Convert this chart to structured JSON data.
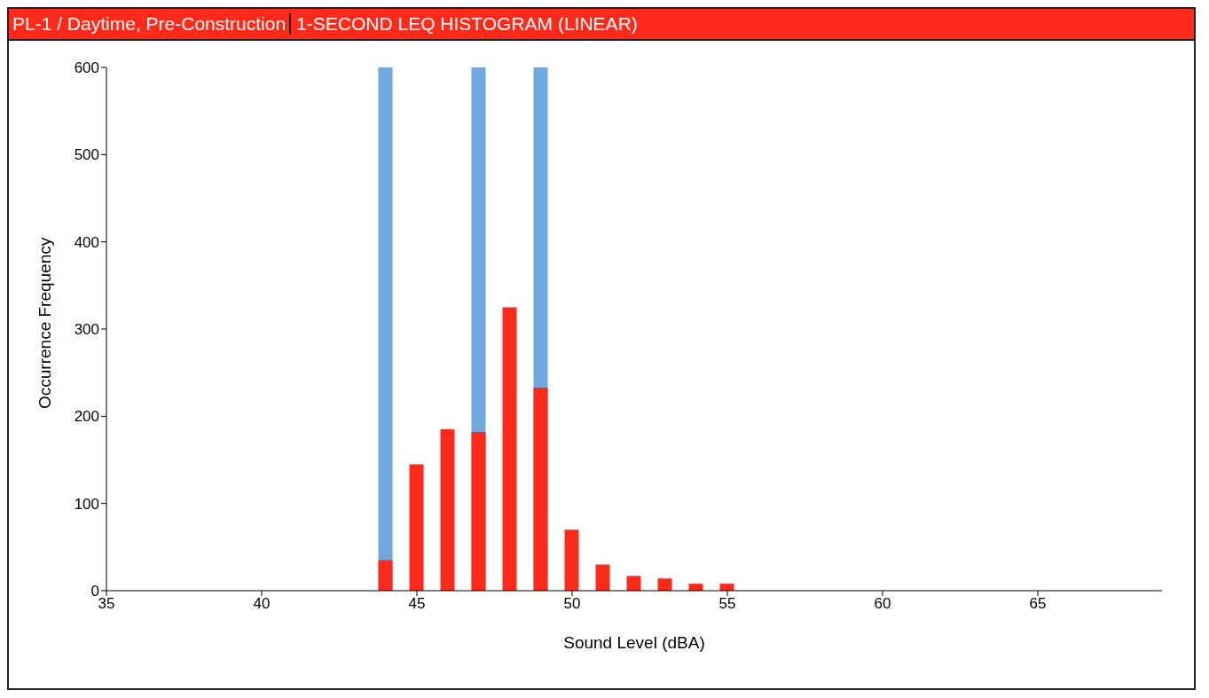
{
  "chart_data": {
    "type": "bar",
    "title": "PL-1 / Daytime, Pre-Construction",
    "subtitle": "1-SECOND LEQ HISTOGRAM (LINEAR)",
    "xlabel": "Sound Level (dBA)",
    "ylabel": "Occurrence Frequency",
    "x": [
      44,
      45,
      46,
      47,
      48,
      49,
      50,
      51,
      52,
      53,
      54,
      55
    ],
    "series": [
      {
        "color": "#6fa8dc",
        "values": [
          600,
          null,
          null,
          600,
          null,
          600,
          null,
          null,
          null,
          null,
          null,
          null
        ]
      },
      {
        "color": "#ff2a1a",
        "values": [
          35,
          145,
          185,
          182,
          325,
          233,
          70,
          30,
          17,
          14,
          8,
          8
        ]
      }
    ],
    "xlim": [
      35,
      69
    ],
    "xticks": [
      35,
      40,
      45,
      50,
      55,
      60,
      65
    ],
    "ylim": [
      0,
      600
    ],
    "yticks": [
      0,
      100,
      200,
      300,
      400,
      500,
      600
    ],
    "grid": false,
    "legend": false
  }
}
